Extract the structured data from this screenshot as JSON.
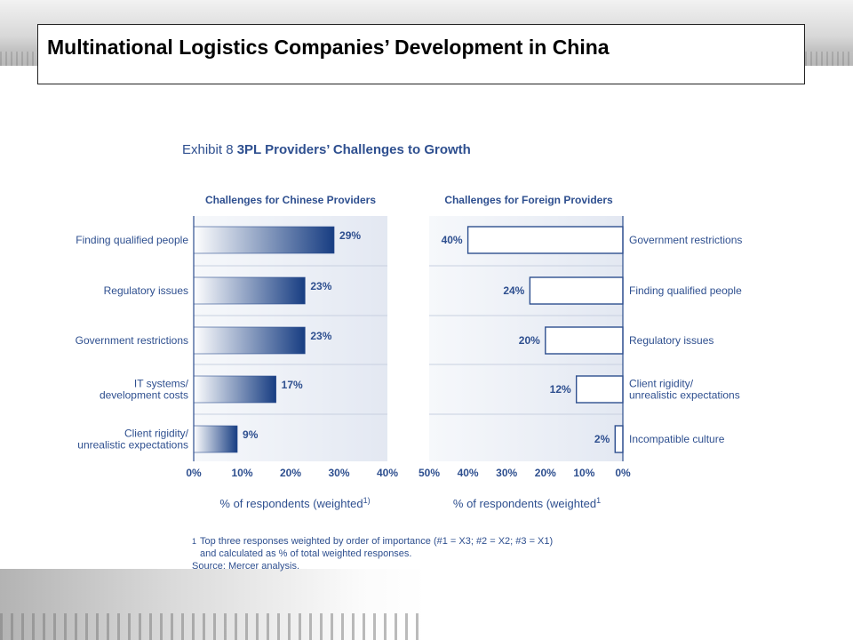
{
  "slide": {
    "title": "Multinational Logistics Companies’ Development in China"
  },
  "exhibit": {
    "label": "Exhibit 8",
    "title": "3PL Providers’ Challenges to Growth"
  },
  "colors": {
    "text": "#2e4f8f",
    "bar_dark": "#173d82",
    "bar_light": "#ffffff",
    "panel": "#e3e8f2",
    "outline": "#2e4f8f"
  },
  "chart_data": [
    {
      "type": "bar",
      "orientation": "horizontal",
      "title": "Challenges for Chinese Providers",
      "xlabel": "% of respondents (weighted",
      "xlabel_superscript": "1)",
      "xlim": [
        0,
        40
      ],
      "ticks": [
        "0%",
        "10%",
        "20%",
        "30%",
        "40%"
      ],
      "categories": [
        "Finding qualified people",
        "Regulatory issues",
        "Government restrictions",
        "IT systems/ development costs",
        "Client rigidity/ unrealistic expectations"
      ],
      "values": [
        29,
        23,
        23,
        17,
        9
      ],
      "value_labels": [
        "29%",
        "23%",
        "23%",
        "17%",
        "9%"
      ]
    },
    {
      "type": "bar",
      "orientation": "horizontal-reversed",
      "title": "Challenges for Foreign Providers",
      "xlabel": "% of respondents (weighted",
      "xlabel_superscript": "1",
      "xlim": [
        50,
        0
      ],
      "ticks": [
        "50%",
        "40%",
        "30%",
        "20%",
        "10%",
        "0%"
      ],
      "categories": [
        "Government restrictions",
        "Finding qualified people",
        "Regulatory issues",
        "Client rigidity/ unrealistic expectations",
        "Incompatible culture"
      ],
      "values": [
        40,
        24,
        20,
        12,
        2
      ],
      "value_labels": [
        "40%",
        "24%",
        "20%",
        "12%",
        "2%"
      ]
    }
  ],
  "footnote": {
    "mark": "1",
    "line1": "Top three responses weighted by order of importance (#1 = X3; #2 = X2; #3 = X1)",
    "line2": "and calculated as % of total weighted responses.",
    "source": "Source: Mercer analysis."
  }
}
